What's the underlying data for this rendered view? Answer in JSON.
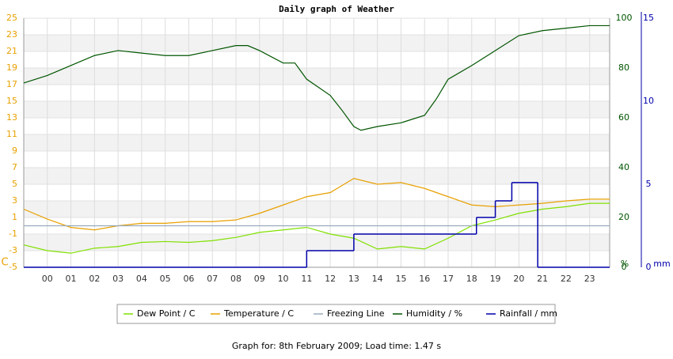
{
  "chart_data": {
    "type": "line",
    "title": "Daily graph of Weather",
    "footer": "Graph for: 8th February 2009; Load time: 1.47 s",
    "y_unit": "C",
    "y2_unit": "%",
    "y3_unit": "mm",
    "xlim": [
      -1,
      23.85
    ],
    "xticks": [
      {
        "value": 0,
        "label": "00"
      },
      {
        "value": 1,
        "label": "01"
      },
      {
        "value": 2,
        "label": "02"
      },
      {
        "value": 3,
        "label": "03"
      },
      {
        "value": 4,
        "label": "04"
      },
      {
        "value": 5,
        "label": "05"
      },
      {
        "value": 6,
        "label": "06"
      },
      {
        "value": 7,
        "label": "07"
      },
      {
        "value": 8,
        "label": "08"
      },
      {
        "value": 9,
        "label": "09"
      },
      {
        "value": 10,
        "label": "10"
      },
      {
        "value": 11,
        "label": "11"
      },
      {
        "value": 12,
        "label": "12"
      },
      {
        "value": 13,
        "label": "13"
      },
      {
        "value": 14,
        "label": "14"
      },
      {
        "value": 15,
        "label": "15"
      },
      {
        "value": 16,
        "label": "16"
      },
      {
        "value": 17,
        "label": "17"
      },
      {
        "value": 18,
        "label": "18"
      },
      {
        "value": 19,
        "label": "19"
      },
      {
        "value": 20,
        "label": "20"
      },
      {
        "value": 21,
        "label": "21"
      },
      {
        "value": 22,
        "label": "22"
      },
      {
        "value": 23,
        "label": "23"
      }
    ],
    "ylim": [
      -5,
      25
    ],
    "yticks": [
      -5,
      -3,
      -1,
      1,
      3,
      5,
      7,
      9,
      11,
      13,
      15,
      17,
      19,
      21,
      23,
      25
    ],
    "y2lim": [
      0,
      100
    ],
    "y2ticks": [
      0,
      20,
      40,
      60,
      80,
      100
    ],
    "y3lim": [
      0,
      15
    ],
    "y3ticks": [
      0,
      5,
      10,
      15
    ],
    "grid": true,
    "series": [
      {
        "name": "Dew Point / C",
        "color": "#80e000",
        "axis": "y",
        "x": [
          -1,
          0,
          1,
          2,
          3,
          4,
          5,
          6,
          7,
          8,
          9,
          10,
          11,
          12,
          13,
          14,
          15,
          16,
          17,
          18,
          19,
          20,
          21,
          22,
          23,
          23.85
        ],
        "values": [
          -2.3,
          -3,
          -3.3,
          -2.7,
          -2.5,
          -2,
          -1.9,
          -2,
          -1.8,
          -1.4,
          -0.8,
          -0.5,
          -0.2,
          -1,
          -1.5,
          -2.8,
          -2.5,
          -2.8,
          -1.5,
          0,
          0.7,
          1.5,
          2,
          2.3,
          2.7,
          2.7
        ]
      },
      {
        "name": "Temperature / C",
        "color": "#e8a000",
        "axis": "y",
        "x": [
          -1,
          0,
          1,
          2,
          3,
          4,
          5,
          6,
          7,
          8,
          9,
          10,
          11,
          12,
          13,
          14,
          15,
          16,
          17,
          18,
          19,
          20,
          21,
          22,
          23,
          23.85
        ],
        "values": [
          2,
          0.8,
          -0.2,
          -0.5,
          0,
          0.3,
          0.3,
          0.5,
          0.5,
          0.7,
          1.5,
          2.5,
          3.5,
          4,
          5.7,
          5,
          5.2,
          4.5,
          3.5,
          2.5,
          2.3,
          2.5,
          2.7,
          3,
          3.2,
          3.2
        ]
      },
      {
        "name": "Freezing Line",
        "color": "#99aabb",
        "axis": "y",
        "x": [
          -1,
          23.85
        ],
        "values": [
          0,
          0
        ]
      },
      {
        "name": "Humidity / %",
        "color": "#005500",
        "axis": "y2",
        "x": [
          -1,
          0,
          1,
          2,
          3,
          4,
          5,
          6,
          7,
          8,
          8.5,
          9,
          10,
          10.5,
          11,
          12,
          12.5,
          13,
          13.3,
          14,
          15,
          16,
          16.5,
          17,
          18,
          19,
          20,
          21,
          22,
          23,
          23.85
        ],
        "values": [
          74,
          77,
          81,
          85,
          87,
          86,
          85,
          85,
          87,
          89,
          89,
          87,
          82,
          82,
          75.5,
          69,
          63,
          56.5,
          55,
          56.5,
          58,
          61,
          67.6,
          75.5,
          81,
          87,
          93,
          95,
          96,
          97,
          97
        ]
      },
      {
        "name": "Rainfall / mm",
        "color": "#0000aa",
        "axis": "y3",
        "step": true,
        "x": [
          -1,
          11,
          13,
          18.2,
          19,
          19.7,
          20.8
        ],
        "values": [
          0,
          1,
          2,
          3,
          4,
          5.1,
          0
        ]
      }
    ]
  }
}
